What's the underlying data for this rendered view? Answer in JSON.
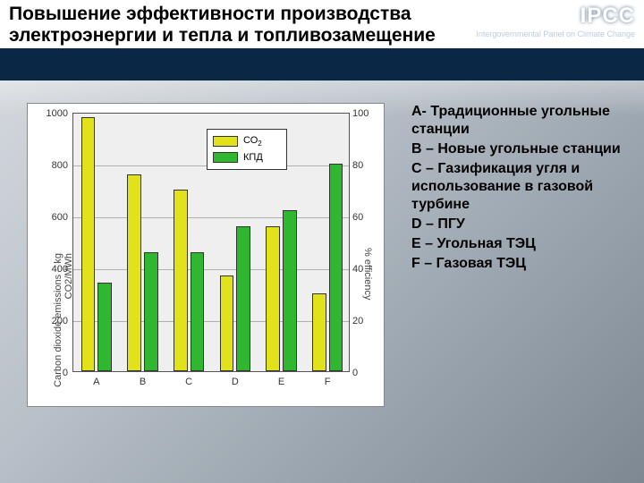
{
  "title": "Повышение эффективности производства электроэнергии и тепла и топливозамещение",
  "ipcc": "IPCC",
  "ipcc_sub": "Intergovernmental Panel\non Climate Change",
  "legend": {
    "a_label": "СО",
    "a_sub": "2",
    "b_label": "КПД"
  },
  "defs": {
    "a": "А- Традиционные угольные станции",
    "b": "B – Новые угольные станции",
    "c": "C – Газификация угля и использование в газовой турбине",
    "d": "D –  ПГУ",
    "e": "E – Угольная ТЭЦ",
    "f": "F – Газовая ТЭЦ"
  },
  "chart": {
    "type": "bar",
    "y_left_label": "Carbon dioxide emissions – kg CO2/MWh",
    "y_right_label": "% efficiency",
    "y_left_min": 0,
    "y_left_max": 1000,
    "y_left_step": 200,
    "y_right_min": 0,
    "y_right_max": 100,
    "y_right_step": 20,
    "categories": [
      "A",
      "B",
      "C",
      "D",
      "E",
      "F"
    ],
    "series": [
      {
        "name": "CO2",
        "color": "#e2e21a",
        "axis": "left",
        "values": [
          980,
          760,
          700,
          370,
          560,
          300
        ]
      },
      {
        "name": "KPD",
        "color": "#2fb82f",
        "axis": "right",
        "values": [
          34,
          46,
          46,
          56,
          62,
          80
        ]
      }
    ],
    "bar_width_pct": 5.0,
    "group_gap_pct": 11.5,
    "background_color": "#efefef",
    "grid_color": "#b0b0b0",
    "border_color": "#555555",
    "font_size": 11
  }
}
